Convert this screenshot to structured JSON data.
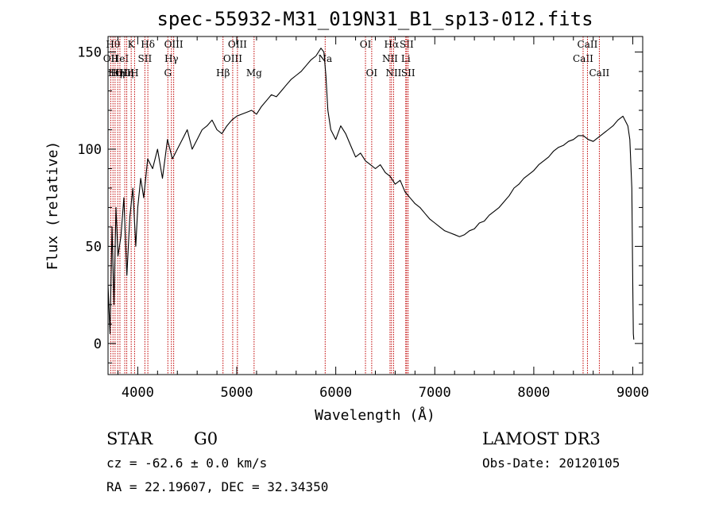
{
  "chart_data": {
    "type": "line",
    "title": "spec-55932-M31_019N31_B1_sp13-012.fits",
    "xlabel": "Wavelength (Å)",
    "ylabel": "Flux (relative)",
    "xlim": [
      3700,
      9100
    ],
    "ylim": [
      -16,
      158
    ],
    "x_ticks": [
      4000,
      5000,
      6000,
      7000,
      8000,
      9000
    ],
    "y_ticks": [
      0,
      50,
      100,
      150
    ],
    "grid": false,
    "series": [
      {
        "color": "#000000",
        "x": [
          3700,
          3720,
          3740,
          3760,
          3780,
          3800,
          3830,
          3860,
          3890,
          3920,
          3950,
          3980,
          4000,
          4030,
          4060,
          4100,
          4150,
          4200,
          4250,
          4300,
          4350,
          4400,
          4450,
          4500,
          4550,
          4600,
          4650,
          4700,
          4750,
          4800,
          4850,
          4900,
          4950,
          5000,
          5050,
          5100,
          5150,
          5200,
          5250,
          5300,
          5350,
          5400,
          5450,
          5500,
          5550,
          5600,
          5650,
          5700,
          5750,
          5800,
          5850,
          5880,
          5900,
          5920,
          5950,
          6000,
          6050,
          6100,
          6150,
          6200,
          6250,
          6300,
          6350,
          6400,
          6450,
          6500,
          6550,
          6600,
          6650,
          6700,
          6750,
          6800,
          6850,
          6900,
          6950,
          7000,
          7050,
          7100,
          7150,
          7200,
          7250,
          7300,
          7350,
          7400,
          7450,
          7500,
          7550,
          7600,
          7650,
          7700,
          7750,
          7800,
          7850,
          7900,
          7950,
          8000,
          8050,
          8100,
          8150,
          8200,
          8250,
          8300,
          8350,
          8400,
          8450,
          8500,
          8550,
          8600,
          8650,
          8700,
          8750,
          8800,
          8850,
          8900,
          8950,
          8970,
          8990,
          9000,
          9005,
          9010
        ],
        "y": [
          30,
          5,
          60,
          20,
          70,
          45,
          55,
          75,
          35,
          65,
          80,
          50,
          70,
          85,
          75,
          95,
          90,
          100,
          85,
          105,
          95,
          100,
          105,
          110,
          100,
          105,
          110,
          112,
          115,
          110,
          108,
          112,
          115,
          117,
          118,
          119,
          120,
          118,
          122,
          125,
          128,
          127,
          130,
          133,
          136,
          138,
          140,
          143,
          146,
          148,
          152,
          150,
          138,
          120,
          110,
          105,
          112,
          108,
          102,
          96,
          98,
          94,
          92,
          90,
          92,
          88,
          86,
          82,
          84,
          78,
          75,
          72,
          70,
          67,
          64,
          62,
          60,
          58,
          57,
          56,
          55,
          56,
          58,
          59,
          62,
          63,
          66,
          68,
          70,
          73,
          76,
          80,
          82,
          85,
          87,
          89,
          92,
          94,
          96,
          99,
          101,
          102,
          104,
          105,
          107,
          107,
          105,
          104,
          106,
          108,
          110,
          112,
          115,
          117,
          112,
          105,
          80,
          30,
          5,
          2
        ]
      }
    ],
    "line_markers": [
      {
        "wl": 3727,
        "label": "OII",
        "row": 1
      },
      {
        "wl": 3750,
        "label": "Hθ",
        "row": 0
      },
      {
        "wl": 3771,
        "label": "Hη",
        "row": 2
      },
      {
        "wl": 3798,
        "label": "Hη",
        "row": 2
      },
      {
        "wl": 3820,
        "label": "HeI",
        "row": 1
      },
      {
        "wl": 3869,
        "label": "OIII",
        "row": 2
      },
      {
        "wl": 3889,
        "label": "Hη",
        "row": 2
      },
      {
        "wl": 3934,
        "label": "K",
        "row": 0
      },
      {
        "wl": 3968,
        "label": "H",
        "row": 2
      },
      {
        "wl": 4072,
        "label": "SII",
        "row": 1
      },
      {
        "wl": 4102,
        "label": "Hδ",
        "row": 0
      },
      {
        "wl": 4304,
        "label": "G",
        "row": 2
      },
      {
        "wl": 4340,
        "label": "Hγ",
        "row": 1
      },
      {
        "wl": 4363,
        "label": "OIII",
        "row": 0
      },
      {
        "wl": 4861,
        "label": "Hβ",
        "row": 2
      },
      {
        "wl": 4959,
        "label": "OIII",
        "row": 1
      },
      {
        "wl": 5007,
        "label": "OIII",
        "row": 0
      },
      {
        "wl": 5175,
        "label": "Mg",
        "row": 2
      },
      {
        "wl": 5893,
        "label": "Na",
        "row": 1
      },
      {
        "wl": 6300,
        "label": "OI",
        "row": 0
      },
      {
        "wl": 6363,
        "label": "OI",
        "row": 2
      },
      {
        "wl": 6548,
        "label": "NII",
        "row": 1
      },
      {
        "wl": 6563,
        "label": "Hα",
        "row": 0
      },
      {
        "wl": 6584,
        "label": "NII",
        "row": 2
      },
      {
        "wl": 6707,
        "label": "Li",
        "row": 1
      },
      {
        "wl": 6716,
        "label": "SII",
        "row": 0
      },
      {
        "wl": 6731,
        "label": "SII",
        "row": 2
      },
      {
        "wl": 8498,
        "label": "CaII",
        "row": 1
      },
      {
        "wl": 8542,
        "label": "CaII",
        "row": 0
      },
      {
        "wl": 8662,
        "label": "CaII",
        "row": 2
      }
    ]
  },
  "info": {
    "object_class": "STAR",
    "subclass": "G0",
    "survey": "LAMOST DR3",
    "cz": "cz = -62.6 ± 0.0 km/s",
    "obs_date": "Obs-Date: 20120105",
    "coords": "RA =  22.19607, DEC =  32.34350"
  },
  "colors": {
    "spectrum": "#000000",
    "line_marker": "#c00000",
    "axes": "#000000"
  }
}
